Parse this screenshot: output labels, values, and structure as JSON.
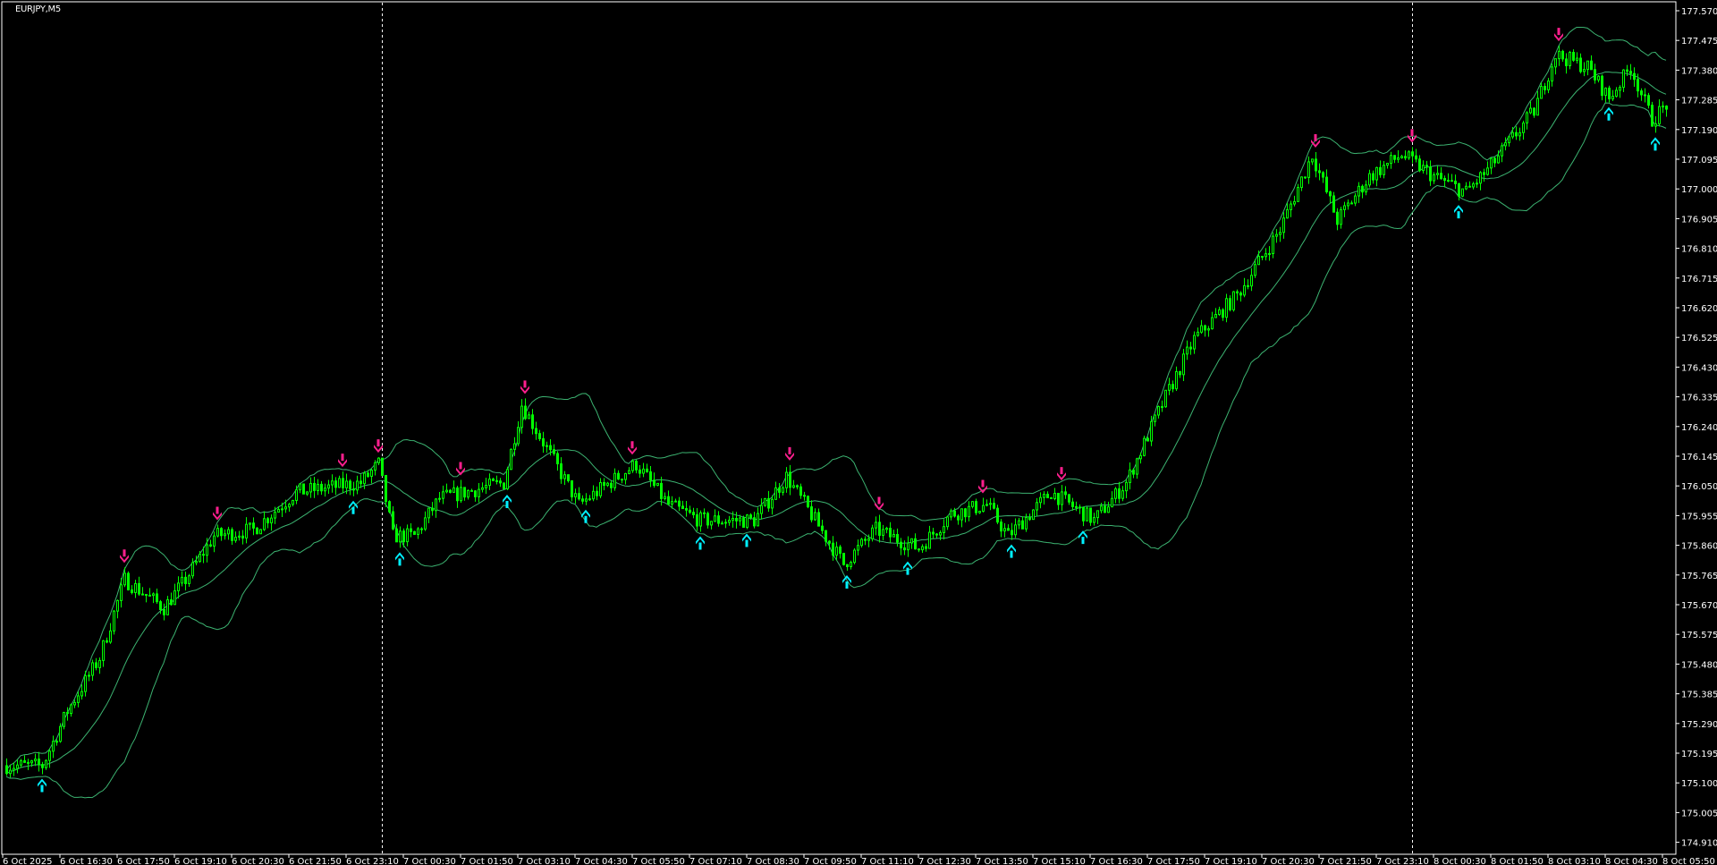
{
  "window": {
    "symbol_label": "EURJPY,M5"
  },
  "colors": {
    "background": "#000000",
    "axis": "#ffffff",
    "candle": "#00ff00",
    "bands": "#3cb371",
    "sell_arrow": "#ff1f8e",
    "buy_arrow": "#00f0ff",
    "separator": "#ffffff"
  },
  "chart_data": {
    "type": "candlestick",
    "title": "EURJPY,M5",
    "timeframe_minutes": 5,
    "indicators": [
      "Bollinger Bands",
      "buy/sell arrows"
    ],
    "ylim": [
      174.91,
      177.57
    ],
    "y_ticks": [
      "177.570",
      "177.475",
      "177.380",
      "177.285",
      "177.190",
      "177.095",
      "177.000",
      "176.905",
      "176.810",
      "176.715",
      "176.620",
      "176.525",
      "176.430",
      "176.335",
      "176.240",
      "176.145",
      "176.050",
      "175.955",
      "175.860",
      "175.765",
      "175.670",
      "175.575",
      "175.480",
      "175.385",
      "175.290",
      "175.195",
      "175.100",
      "175.005",
      "174.910"
    ],
    "x_ticks": [
      "6 Oct 2025",
      "6 Oct 16:30",
      "6 Oct 17:50",
      "6 Oct 19:10",
      "6 Oct 20:30",
      "6 Oct 21:50",
      "6 Oct 23:10",
      "7 Oct 00:30",
      "7 Oct 01:50",
      "7 Oct 03:10",
      "7 Oct 04:30",
      "7 Oct 05:50",
      "7 Oct 07:10",
      "7 Oct 08:30",
      "7 Oct 09:50",
      "7 Oct 11:10",
      "7 Oct 12:30",
      "7 Oct 13:50",
      "7 Oct 15:10",
      "7 Oct 16:30",
      "7 Oct 17:50",
      "7 Oct 19:10",
      "7 Oct 20:30",
      "7 Oct 21:50",
      "7 Oct 23:10",
      "8 Oct 00:30",
      "8 Oct 01:50",
      "8 Oct 03:10",
      "8 Oct 04:30",
      "8 Oct 05:50"
    ],
    "day_separators": [
      "2025-10-07 00:00",
      "2025-10-08 00:00"
    ],
    "close_path": [
      [
        "2025-10-06 15:15",
        175.155
      ],
      [
        "2025-10-06 16:05",
        175.155
      ],
      [
        "2025-10-06 16:40",
        175.33
      ],
      [
        "2025-10-06 17:25",
        175.5
      ],
      [
        "2025-10-06 18:00",
        175.75
      ],
      [
        "2025-10-06 18:55",
        175.66
      ],
      [
        "2025-10-06 19:25",
        175.75
      ],
      [
        "2025-10-06 20:05",
        175.89
      ],
      [
        "2025-10-06 21:00",
        175.91
      ],
      [
        "2025-10-06 22:00",
        176.03
      ],
      [
        "2025-10-06 23:30",
        176.06
      ],
      [
        "2025-10-06 23:55",
        176.12
      ],
      [
        "2025-10-07 00:15",
        175.89
      ],
      [
        "2025-10-07 00:45",
        175.89
      ],
      [
        "2025-10-07 01:20",
        176.01
      ],
      [
        "2025-10-07 02:50",
        176.06
      ],
      [
        "2025-10-07 03:15",
        176.31
      ],
      [
        "2025-10-07 03:50",
        176.17
      ],
      [
        "2025-10-07 04:35",
        175.99
      ],
      [
        "2025-10-07 05:55",
        176.12
      ],
      [
        "2025-10-07 06:40",
        175.99
      ],
      [
        "2025-10-07 07:25",
        175.94
      ],
      [
        "2025-10-07 08:40",
        175.94
      ],
      [
        "2025-10-07 09:25",
        176.08
      ],
      [
        "2025-10-07 10:45",
        175.8
      ],
      [
        "2025-10-07 11:30",
        175.91
      ],
      [
        "2025-10-07 12:30",
        175.85
      ],
      [
        "2025-10-07 13:15",
        175.96
      ],
      [
        "2025-10-07 14:05",
        175.99
      ],
      [
        "2025-10-07 14:35",
        175.89
      ],
      [
        "2025-10-07 15:35",
        176.03
      ],
      [
        "2025-10-07 16:35",
        175.94
      ],
      [
        "2025-10-07 17:20",
        176.06
      ],
      [
        "2025-10-07 18:10",
        176.31
      ],
      [
        "2025-10-07 18:55",
        176.52
      ],
      [
        "2025-10-07 19:55",
        176.66
      ],
      [
        "2025-10-07 20:55",
        176.87
      ],
      [
        "2025-10-07 21:40",
        177.11
      ],
      [
        "2025-10-07 22:15",
        176.9
      ],
      [
        "2025-10-07 23:00",
        177.04
      ],
      [
        "2025-10-07 23:45",
        177.11
      ],
      [
        "2025-10-08 00:30",
        177.04
      ],
      [
        "2025-10-08 01:15",
        176.99
      ],
      [
        "2025-10-08 01:45",
        177.06
      ],
      [
        "2025-10-08 02:50",
        177.25
      ],
      [
        "2025-10-08 03:20",
        177.43
      ],
      [
        "2025-10-08 04:05",
        177.39
      ],
      [
        "2025-10-08 04:35",
        177.29
      ],
      [
        "2025-10-08 05:05",
        177.39
      ],
      [
        "2025-10-08 05:35",
        177.22
      ],
      [
        "2025-10-08 05:55",
        177.27
      ]
    ]
  }
}
